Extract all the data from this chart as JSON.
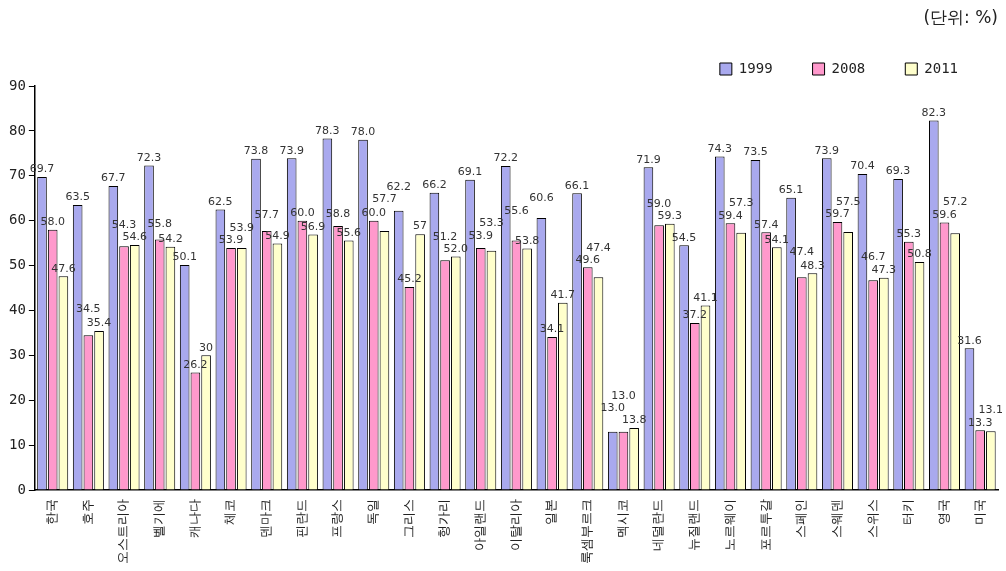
{
  "chart_data": {
    "type": "bar",
    "annotations": [
      "(단위: %)"
    ],
    "categories": [
      "한국",
      "호주",
      "오스트리아",
      "벨기에",
      "캐나다",
      "체코",
      "덴마크",
      "핀란드",
      "프랑스",
      "독일",
      "그리스",
      "헝가리",
      "아일랜드",
      "이탈리아",
      "일본",
      "룩셈부르크",
      "멕시코",
      "네덜란드",
      "뉴질랜드",
      "노르웨이",
      "포르투갈",
      "스페인",
      "스웨덴",
      "스위스",
      "터키",
      "영국",
      "미국"
    ],
    "series": [
      {
        "name": "1999",
        "color": "#a9a9ee",
        "values": [
          69.7,
          63.5,
          67.7,
          72.3,
          50.1,
          62.5,
          73.8,
          73.9,
          78.3,
          78.0,
          62.2,
          66.2,
          69.1,
          72.2,
          60.6,
          66.1,
          13.0,
          71.9,
          54.5,
          74.3,
          73.5,
          65.1,
          73.9,
          70.4,
          69.3,
          82.3,
          31.6
        ],
        "value_labels": [
          "69.7",
          "63.5",
          "67.7",
          "72.3",
          "50.1",
          "62.5",
          "73.8",
          "73.9",
          "78.3",
          "78.0",
          "62.2",
          "66.2",
          "69.1",
          "72.2",
          "60.6",
          "66.1",
          "13.0",
          "71.9",
          "54.5",
          "74.3",
          "73.5",
          "65.1",
          "73.9",
          "70.4",
          "69.3",
          "82.3",
          "31.6"
        ]
      },
      {
        "name": "2008",
        "color": "#ff99cc",
        "values": [
          58.0,
          34.5,
          54.3,
          55.8,
          26.2,
          53.9,
          57.7,
          60.0,
          58.8,
          60.0,
          45.2,
          51.2,
          53.9,
          55.6,
          34.1,
          49.6,
          13.0,
          59.0,
          37.2,
          59.4,
          57.4,
          47.4,
          59.7,
          46.7,
          55.3,
          59.6,
          13.3
        ],
        "value_labels": [
          "58.0",
          "34.5",
          "54.3",
          "55.8",
          "26.2",
          "53.9",
          "57.7",
          "60.0",
          "58.8",
          "60.0",
          "45.2",
          "51.2",
          "53.9",
          "55.6",
          "34.1",
          "49.6",
          "13.0",
          "59.0",
          "37.2",
          "59.4",
          "57.4",
          "47.4",
          "59.7",
          "46.7",
          "55.3",
          "59.6",
          "13.3"
        ]
      },
      {
        "name": "2011",
        "color": "#ffffcc",
        "values": [
          47.6,
          35.4,
          54.6,
          54.2,
          30,
          53.9,
          54.9,
          56.9,
          55.6,
          57.7,
          57,
          52.0,
          53.3,
          53.8,
          41.7,
          47.4,
          13.8,
          59.3,
          41.1,
          57.3,
          54.1,
          48.3,
          57.5,
          47.3,
          50.8,
          57.2,
          13.1
        ],
        "value_labels": [
          "47.6",
          "35.4",
          "54.6",
          "54.2",
          "30",
          "53.9",
          "54.9",
          "56.9",
          "55.6",
          "57.7",
          "57",
          "52.0",
          "53.3",
          "53.8",
          "41.7",
          "47.4",
          "13.8",
          "59.3",
          "41.1",
          "57.3",
          "54.1",
          "48.3",
          "57.5",
          "47.3",
          "50.8",
          "57.2",
          "13.1"
        ]
      }
    ],
    "ylim": [
      0,
      90
    ],
    "yticks": [
      0,
      10,
      20,
      30,
      40,
      50,
      60,
      70,
      80,
      90
    ],
    "grid": false,
    "legend": "top right"
  }
}
